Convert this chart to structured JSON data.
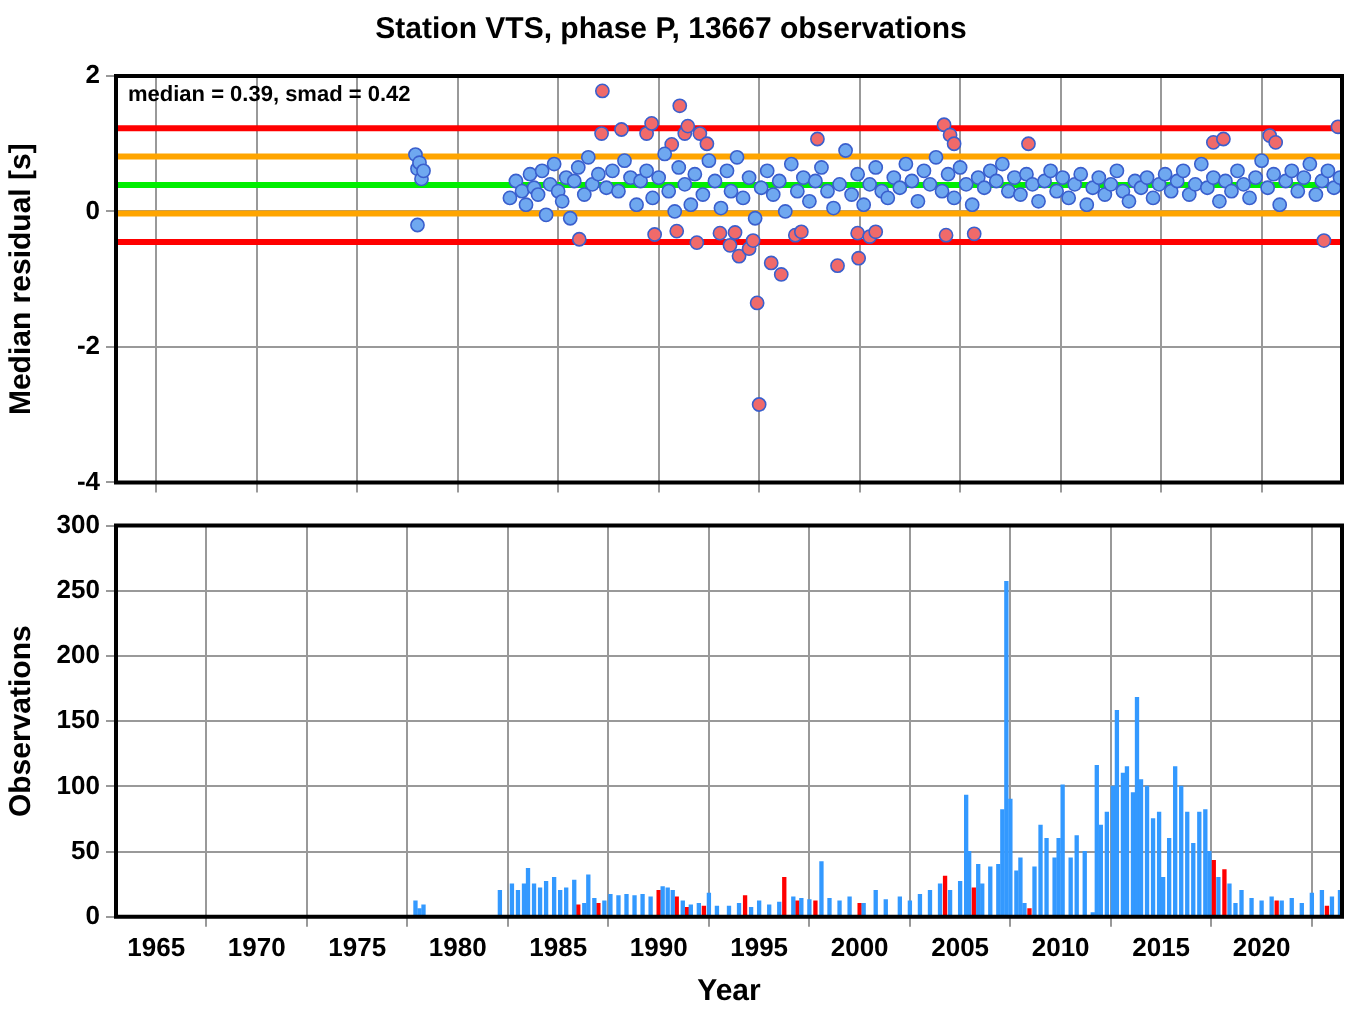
{
  "chart_data": [
    {
      "type": "scatter",
      "title": "Station VTS, phase P, 13667 observations",
      "ylabel": "Median residual [s]",
      "xlim": [
        1963,
        2024
      ],
      "xticks": [
        1965,
        1970,
        1975,
        1980,
        1985,
        1990,
        1995,
        2000,
        2005,
        2010,
        2015,
        2020
      ],
      "ylim": [
        -4,
        2
      ],
      "yticks": [
        -4,
        -2,
        0,
        2
      ],
      "grid": true,
      "tick_labels": "y",
      "marker": "circle",
      "annotations": [
        "median = 0.39, smad = 0.42"
      ],
      "ref_lines": [
        {
          "axis": "y",
          "value": 0.39,
          "color": "#00ee00"
        },
        {
          "axis": "y",
          "value": 0.81,
          "color": "#ffa500"
        },
        {
          "axis": "y",
          "value": -0.03,
          "color": "#ffa500"
        },
        {
          "axis": "y",
          "value": 1.23,
          "color": "#ff0000"
        },
        {
          "axis": "y",
          "value": -0.45,
          "color": "#ff0000"
        }
      ],
      "series": [
        {
          "color": "#6fa8f0",
          "x": [
            1977.9,
            1978.0,
            1978.1,
            1978.2,
            1978.0,
            1978.3,
            1982.6,
            1982.9,
            1983.2,
            1983.4,
            1983.6,
            1983.8,
            1984.0,
            1984.2,
            1984.4,
            1984.6,
            1984.8,
            1985.0,
            1985.2,
            1985.4,
            1985.6,
            1985.8,
            1986.0,
            1986.3,
            1986.5,
            1986.7,
            1987.0,
            1987.4,
            1987.7,
            1988.0,
            1988.3,
            1988.6,
            1988.9,
            1989.1,
            1989.4,
            1989.7,
            1990.0,
            1990.3,
            1990.5,
            1990.8,
            1991.0,
            1991.3,
            1991.6,
            1991.8,
            1992.2,
            1992.5,
            1992.8,
            1993.1,
            1993.4,
            1993.6,
            1993.9,
            1994.2,
            1994.5,
            1994.8,
            1995.1,
            1995.4,
            1995.7,
            1996.0,
            1996.3,
            1996.6,
            1996.9,
            1997.2,
            1997.5,
            1997.8,
            1998.1,
            1998.4,
            1998.7,
            1999.0,
            1999.3,
            1999.6,
            1999.9,
            2000.2,
            2000.5,
            2000.8,
            2001.1,
            2001.4,
            2001.7,
            2002.0,
            2002.3,
            2002.6,
            2002.9,
            2003.2,
            2003.5,
            2003.8,
            2004.1,
            2004.4,
            2004.7,
            2005.0,
            2005.3,
            2005.6,
            2005.9,
            2006.2,
            2006.5,
            2006.8,
            2007.1,
            2007.4,
            2007.7,
            2008.0,
            2008.3,
            2008.6,
            2008.9,
            2009.2,
            2009.5,
            2009.8,
            2010.1,
            2010.4,
            2010.7,
            2011.0,
            2011.3,
            2011.6,
            2011.9,
            2012.2,
            2012.5,
            2012.8,
            2013.1,
            2013.4,
            2013.7,
            2014.0,
            2014.3,
            2014.6,
            2014.9,
            2015.2,
            2015.5,
            2015.8,
            2016.1,
            2016.4,
            2016.7,
            2017.0,
            2017.3,
            2017.6,
            2017.9,
            2018.2,
            2018.5,
            2018.8,
            2019.1,
            2019.4,
            2019.7,
            2020.0,
            2020.3,
            2020.6,
            2020.9,
            2021.2,
            2021.5,
            2021.8,
            2022.1,
            2022.4,
            2022.7,
            2023.0,
            2023.3,
            2023.6,
            2023.9
          ],
          "values": [
            0.84,
            0.63,
            0.72,
            0.48,
            -0.2,
            0.6,
            0.2,
            0.45,
            0.3,
            0.1,
            0.55,
            0.35,
            0.25,
            0.6,
            -0.05,
            0.4,
            0.7,
            0.3,
            0.15,
            0.5,
            -0.1,
            0.45,
            0.65,
            0.25,
            0.8,
            0.4,
            0.55,
            0.35,
            0.6,
            0.3,
            0.75,
            0.5,
            0.1,
            0.45,
            0.6,
            0.2,
            0.5,
            0.85,
            0.3,
            0.0,
            0.65,
            0.4,
            0.1,
            0.55,
            0.25,
            0.75,
            0.45,
            0.05,
            0.6,
            0.3,
            0.8,
            0.2,
            0.5,
            -0.1,
            0.35,
            0.6,
            0.25,
            0.45,
            0.0,
            0.7,
            0.3,
            0.5,
            0.15,
            0.45,
            0.65,
            0.3,
            0.05,
            0.4,
            0.9,
            0.25,
            0.55,
            0.1,
            0.4,
            0.65,
            0.3,
            0.2,
            0.5,
            0.35,
            0.7,
            0.45,
            0.15,
            0.6,
            0.4,
            0.8,
            0.3,
            0.55,
            0.2,
            0.65,
            0.4,
            0.1,
            0.5,
            0.35,
            0.6,
            0.45,
            0.7,
            0.3,
            0.5,
            0.25,
            0.55,
            0.4,
            0.15,
            0.45,
            0.6,
            0.3,
            0.5,
            0.2,
            0.4,
            0.55,
            0.1,
            0.35,
            0.5,
            0.25,
            0.4,
            0.6,
            0.3,
            0.15,
            0.45,
            0.35,
            0.5,
            0.2,
            0.4,
            0.55,
            0.3,
            0.45,
            0.6,
            0.25,
            0.4,
            0.7,
            0.35,
            0.5,
            0.15,
            0.45,
            0.3,
            0.6,
            0.4,
            0.2,
            0.5,
            0.75,
            0.35,
            0.55,
            0.1,
            0.45,
            0.6,
            0.3,
            0.5,
            0.7,
            0.25,
            0.45,
            0.6,
            0.35,
            0.5
          ]
        },
        {
          "color": "#f06a6a",
          "x": [
            1986.05,
            1987.2,
            1987.16,
            1988.15,
            1989.4,
            1989.65,
            1990.65,
            1991.05,
            1991.3,
            1991.45,
            1992.05,
            1992.4,
            1989.8,
            1990.9,
            1991.9,
            1993.05,
            1993.8,
            1993.55,
            1994.0,
            1994.5,
            1994.7,
            1994.9,
            1995.0,
            1995.6,
            1996.1,
            1996.8,
            1997.1,
            1997.9,
            1998.9,
            1999.9,
            1999.95,
            2000.5,
            2000.8,
            2004.2,
            2004.5,
            2004.7,
            2004.3,
            2005.7,
            2008.4,
            2017.6,
            2018.1,
            2020.4,
            2020.7,
            2023.1,
            2023.8
          ],
          "values": [
            -0.41,
            1.78,
            1.15,
            1.21,
            1.15,
            1.3,
            0.99,
            1.56,
            1.15,
            1.26,
            1.15,
            1.0,
            -0.34,
            -0.29,
            -0.46,
            -0.32,
            -0.31,
            -0.5,
            -0.66,
            -0.55,
            -0.43,
            -1.35,
            -2.85,
            -0.76,
            -0.93,
            -0.35,
            -0.3,
            1.07,
            -0.8,
            -0.32,
            -0.69,
            -0.37,
            -0.3,
            1.28,
            1.13,
            1.0,
            -0.35,
            -0.33,
            1.0,
            1.02,
            1.07,
            1.12,
            1.02,
            -0.43,
            1.25
          ]
        }
      ]
    },
    {
      "type": "bar",
      "xlabel": "Year",
      "ylabel": "Observations",
      "xlim": [
        1963,
        2024
      ],
      "xticks": [
        1965,
        1970,
        1975,
        1980,
        1985,
        1990,
        1995,
        2000,
        2005,
        2010,
        2015,
        2020
      ],
      "ylim": [
        0,
        300
      ],
      "yticks": [
        0,
        50,
        100,
        150,
        200,
        250,
        300
      ],
      "grid": true,
      "series": [
        {
          "color": "#3399ff",
          "x": [
            1977.9,
            1978.1,
            1978.3,
            1982.1,
            1982.7,
            1983.0,
            1983.3,
            1983.5,
            1983.8,
            1984.1,
            1984.4,
            1984.8,
            1985.1,
            1985.4,
            1985.8,
            1986.3,
            1986.5,
            1986.8,
            1987.3,
            1987.6,
            1988.0,
            1988.4,
            1988.8,
            1989.2,
            1989.6,
            1990.2,
            1990.45,
            1990.7,
            1991.2,
            1991.6,
            1992.0,
            1992.5,
            1992.9,
            1993.5,
            1994.0,
            1994.6,
            1995.0,
            1995.5,
            1996.0,
            1996.7,
            1997.1,
            1997.5,
            1998.1,
            1998.5,
            1999.0,
            1999.5,
            2000.2,
            2000.8,
            2001.3,
            2002.0,
            2002.5,
            2003.0,
            2003.5,
            2004.0,
            2004.5,
            2005.0,
            2005.3,
            2005.45,
            2005.9,
            2006.1,
            2006.5,
            2006.9,
            2007.1,
            2007.3,
            2007.5,
            2007.8,
            2008.0,
            2008.2,
            2008.7,
            2009.0,
            2009.3,
            2009.7,
            2009.9,
            2010.1,
            2010.5,
            2010.8,
            2011.2,
            2011.6,
            2011.8,
            2012.0,
            2012.3,
            2012.6,
            2012.8,
            2013.1,
            2013.3,
            2013.6,
            2013.8,
            2014.0,
            2014.3,
            2014.6,
            2014.9,
            2015.1,
            2015.4,
            2015.7,
            2016.0,
            2016.3,
            2016.6,
            2016.9,
            2017.2,
            2017.4,
            2017.85,
            2018.4,
            2018.7,
            2019.0,
            2019.5,
            2020.0,
            2020.5,
            2021.0,
            2021.5,
            2022.0,
            2022.5,
            2023.0,
            2023.5,
            2023.9
          ],
          "values": [
            12,
            6,
            9,
            20,
            25,
            20,
            25,
            37,
            25,
            22,
            27,
            30,
            20,
            22,
            28,
            10,
            32,
            14,
            12,
            17,
            16,
            17,
            16,
            17,
            15,
            23,
            22,
            20,
            12,
            9,
            10,
            18,
            8,
            8,
            10,
            7,
            12,
            9,
            11,
            15,
            14,
            13,
            42,
            14,
            12,
            15,
            10,
            20,
            13,
            15,
            12,
            17,
            20,
            25,
            20,
            27,
            93,
            50,
            40,
            25,
            38,
            40,
            82,
            257,
            90,
            35,
            45,
            10,
            38,
            70,
            60,
            45,
            60,
            101,
            45,
            62,
            50,
            3,
            116,
            70,
            80,
            100,
            158,
            110,
            115,
            95,
            168,
            105,
            100,
            75,
            80,
            30,
            60,
            115,
            100,
            80,
            56,
            80,
            82,
            50,
            30,
            25,
            10,
            20,
            14,
            12,
            15,
            12,
            14,
            10,
            18,
            20,
            15,
            20
          ]
        },
        {
          "color": "#ff0000",
          "x": [
            1986.0,
            1987.0,
            1990.0,
            1990.9,
            1991.4,
            1992.25,
            1994.3,
            1996.25,
            1996.9,
            1997.8,
            2000.0,
            2004.25,
            2005.68,
            2008.45,
            2017.62,
            2018.15,
            2020.75,
            2023.25
          ],
          "values": [
            9,
            10,
            20,
            15,
            7,
            8,
            16,
            30,
            12,
            12,
            10,
            31,
            22,
            6,
            43,
            36,
            12,
            8
          ]
        }
      ]
    }
  ]
}
